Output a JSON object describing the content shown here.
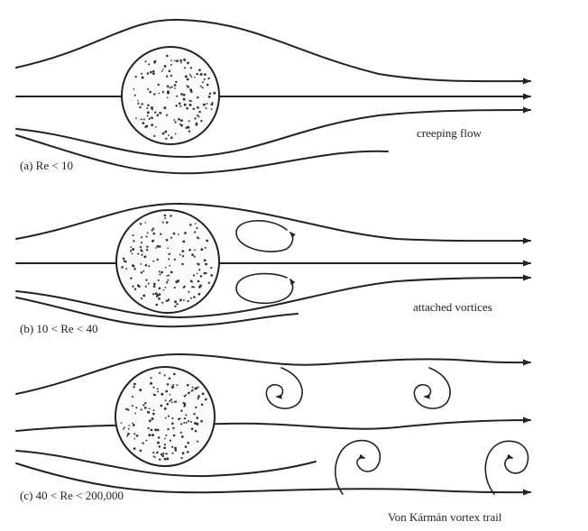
{
  "panels": [
    {
      "case_label": "(a)  Re < 10",
      "regime": "creeping flow"
    },
    {
      "case_label": "(b)  10 < Re < 40",
      "regime": "attached vortices"
    },
    {
      "case_label": "(c)  40 < Re < 200,000",
      "regime": "Von Kármán vortex trail"
    }
  ]
}
